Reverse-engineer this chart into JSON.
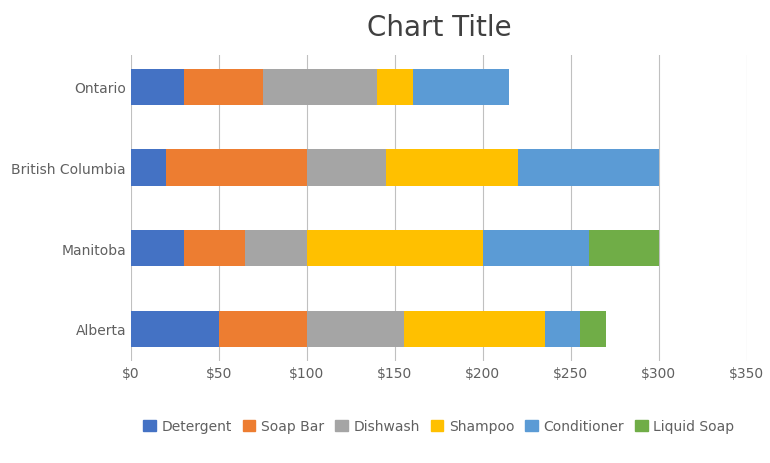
{
  "title": "Chart Title",
  "categories": [
    "Alberta",
    "Manitoba",
    "British Columbia",
    "Ontario"
  ],
  "series": [
    {
      "name": "Detergent",
      "color": "#4472C4",
      "values": [
        50,
        30,
        20,
        30
      ]
    },
    {
      "name": "Soap Bar",
      "color": "#ED7D31",
      "values": [
        50,
        35,
        80,
        45
      ]
    },
    {
      "name": "Dishwash",
      "color": "#A5A5A5",
      "values": [
        55,
        35,
        45,
        65
      ]
    },
    {
      "name": "Shampoo",
      "color": "#FFC000",
      "values": [
        80,
        100,
        75,
        20
      ]
    },
    {
      "name": "Conditioner",
      "color": "#5B9BD5",
      "values": [
        20,
        60,
        80,
        55
      ]
    },
    {
      "name": "Liquid Soap",
      "color": "#70AD47",
      "values": [
        15,
        40,
        0,
        0
      ]
    }
  ],
  "xlim": [
    0,
    350
  ],
  "xticks": [
    0,
    50,
    100,
    150,
    200,
    250,
    300,
    350
  ],
  "plot_area_color": "#FFFFFF",
  "outer_bg_color": "#FFFFFF",
  "grid_color": "#C0C0C0",
  "title_fontsize": 20,
  "tick_fontsize": 10,
  "legend_fontsize": 10,
  "bar_height": 0.45,
  "title_color": "#404040",
  "tick_color": "#606060"
}
